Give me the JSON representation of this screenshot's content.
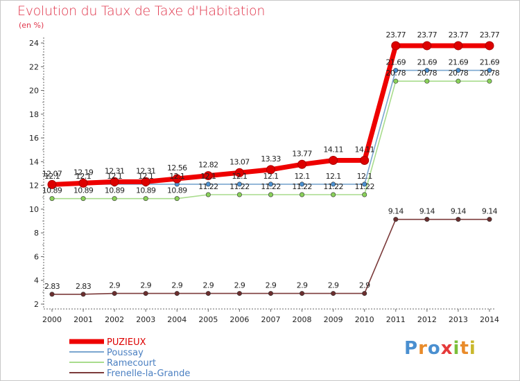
{
  "title": "Evolution du Taux de Taxe d'Habitation",
  "unit_label": "(en %)",
  "logo": {
    "text": "Proxiti",
    "letter_colors": [
      "#4a8fd0",
      "#e98b2a",
      "#4a8fd0",
      "#e53a3a",
      "#7bbf3a",
      "#e98b2a",
      "#c9b82c"
    ]
  },
  "chart_data": {
    "type": "line",
    "title": "Evolution du Taux de Taxe d'Habitation",
    "ylabel": "(en %)",
    "xlabel": "",
    "ylim": [
      2,
      24
    ],
    "yticks": [
      2,
      4,
      6,
      8,
      10,
      12,
      14,
      16,
      18,
      20,
      22,
      24
    ],
    "grid": false,
    "legend_position": "bottom-left",
    "x": [
      "2000",
      "2001",
      "2002",
      "2003",
      "2004",
      "2005",
      "2006",
      "2007",
      "2008",
      "2009",
      "2010",
      "2011",
      "2012",
      "2013",
      "2014"
    ],
    "series": [
      {
        "name": "PUZIEUX",
        "color": "#ee0000",
        "emphasis": true,
        "values": [
          12.07,
          12.19,
          12.31,
          12.31,
          12.56,
          12.82,
          13.07,
          13.33,
          13.77,
          14.11,
          14.11,
          23.77,
          23.77,
          23.77,
          23.77
        ],
        "labels": [
          "12.07",
          "12.19",
          "12.31",
          "12.31",
          "12.56",
          "12.82",
          "13.07",
          "13.33",
          "13.77",
          "14.11",
          "14.11",
          "23.77",
          "23.77",
          "23.77",
          "23.77"
        ]
      },
      {
        "name": "Poussay",
        "color": "#7aa6cf",
        "marker": "#4a8fd0",
        "values": [
          12.1,
          12.1,
          12.1,
          12.1,
          12.1,
          12.1,
          12.1,
          12.1,
          12.1,
          12.1,
          12.1,
          21.69,
          21.69,
          21.69,
          21.69
        ],
        "labels": [
          "12.1",
          "12.1",
          "12.1",
          "12.1",
          "12.1",
          "12.1",
          "12.1",
          "12.1",
          "12.1",
          "12.1",
          "12.1",
          "21.69",
          "21.69",
          "21.69",
          "21.69"
        ]
      },
      {
        "name": "Ramecourt",
        "color": "#a8dc8c",
        "marker": "#8ad15a",
        "values": [
          10.89,
          10.89,
          10.89,
          10.89,
          10.89,
          11.22,
          11.22,
          11.22,
          11.22,
          11.22,
          11.22,
          20.78,
          20.78,
          20.78,
          20.78
        ],
        "labels": [
          "10.89",
          "10.89",
          "10.89",
          "10.89",
          "10.89",
          "11.22",
          "11.22",
          "11.22",
          "11.22",
          "11.22",
          "11.22",
          "20.78",
          "20.78",
          "20.78",
          "20.78"
        ]
      },
      {
        "name": "Frenelle-la-Grande",
        "color": "#7b3a3a",
        "marker": "#6b2e2e",
        "values": [
          2.83,
          2.83,
          2.9,
          2.9,
          2.9,
          2.9,
          2.9,
          2.9,
          2.9,
          2.9,
          2.9,
          9.14,
          9.14,
          9.14,
          9.14
        ],
        "labels": [
          "2.83",
          "2.83",
          "2.9",
          "2.9",
          "2.9",
          "2.9",
          "2.9",
          "2.9",
          "2.9",
          "2.9",
          "2.9",
          "9.14",
          "9.14",
          "9.14",
          "9.14"
        ]
      }
    ]
  }
}
